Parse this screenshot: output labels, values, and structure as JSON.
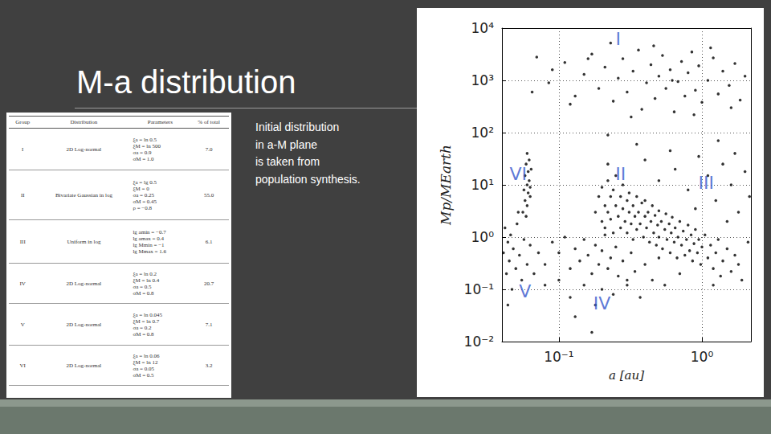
{
  "slide": {
    "title": "M-a distribution",
    "caption": [
      "Initial distribution",
      "in a-M plane",
      "is taken from",
      "population synthesis."
    ],
    "table": {
      "header": [
        "Group",
        "Distribution",
        "Parameters",
        "% of total"
      ],
      "rows": [
        [
          "I",
          "2D Log-normal",
          [
            "ξa = ln 0.5",
            "ξM = ln 500",
            "σa = 0.9",
            "σM = 1.0"
          ],
          "7.0"
        ],
        [
          "II",
          "Bivariate Gaussian in log",
          [
            "ξa = lg 0.5",
            "ξM = 0",
            "σa = 0.25",
            "σM = 0.45",
            "ρ = −0.8"
          ],
          "55.0"
        ],
        [
          "III",
          "Uniform in log",
          [
            "lg amin = −0.7",
            "lg amax = 0.4",
            "lg Mmin = −1",
            "lg Mmax = 1.6"
          ],
          "6.1"
        ],
        [
          "IV",
          "2D Log-normal",
          [
            "ξa = ln 0.2",
            "ξM = ln 0.4",
            "σa = 0.5",
            "σM = 0.8"
          ],
          "20.7"
        ],
        [
          "V",
          "2D Log-normal",
          [
            "ξa = ln 0.045",
            "ξM = ln 0.7",
            "σa = 0.2",
            "σM = 0.8"
          ],
          "7.1"
        ],
        [
          "VI",
          "2D Log-normal",
          [
            "ξa = ln 0.06",
            "ξM = ln 12",
            "σa = 0.05",
            "σM = 0.5"
          ],
          "3.2"
        ]
      ]
    }
  },
  "chart_data": {
    "type": "scatter",
    "xlabel": "a [au]",
    "ylabel": "Mp/MEarth",
    "log": true,
    "grid": true,
    "color": "#000000",
    "marker": "circle",
    "xlim": [
      0.04,
      2.2
    ],
    "ylim": [
      0.01,
      10000
    ],
    "xticks": [
      {
        "value": 0.1,
        "label": "10⁻¹"
      },
      {
        "value": 1,
        "label": "10⁰"
      }
    ],
    "yticks": [
      {
        "value": 0.01,
        "label": "10⁻²"
      },
      {
        "value": 0.1,
        "label": "10⁻¹"
      },
      {
        "value": 1,
        "label": "10⁰"
      },
      {
        "value": 10,
        "label": "10¹"
      },
      {
        "value": 100,
        "label": "10²"
      },
      {
        "value": 1000,
        "label": "10³"
      },
      {
        "value": 10000,
        "label": "10⁴"
      }
    ],
    "x": [
      0.07,
      0.085,
      0.11,
      0.13,
      0.15,
      0.17,
      0.19,
      0.21,
      0.24,
      0.26,
      0.28,
      0.3,
      0.33,
      0.36,
      0.38,
      0.41,
      0.44,
      0.47,
      0.5,
      0.53,
      0.56,
      0.6,
      0.64,
      0.68,
      0.72,
      0.76,
      0.8,
      0.85,
      0.9,
      0.95,
      1.0,
      1.1,
      1.2,
      1.3,
      1.4,
      1.55,
      1.7,
      1.85,
      2.0,
      0.09,
      0.12,
      0.16,
      0.23,
      0.32,
      0.46,
      0.62,
      0.88,
      1.15,
      1.6,
      0.065,
      0.22,
      0.35,
      0.6,
      1.3,
      0.18,
      0.19,
      0.2,
      0.2,
      0.21,
      0.21,
      0.22,
      0.22,
      0.23,
      0.23,
      0.24,
      0.24,
      0.25,
      0.25,
      0.26,
      0.27,
      0.27,
      0.28,
      0.28,
      0.29,
      0.3,
      0.3,
      0.31,
      0.31,
      0.32,
      0.33,
      0.33,
      0.34,
      0.35,
      0.35,
      0.36,
      0.37,
      0.38,
      0.39,
      0.4,
      0.4,
      0.41,
      0.42,
      0.43,
      0.44,
      0.45,
      0.46,
      0.47,
      0.48,
      0.49,
      0.5,
      0.5,
      0.52,
      0.53,
      0.55,
      0.56,
      0.57,
      0.59,
      0.6,
      0.61,
      0.62,
      0.64,
      0.65,
      0.67,
      0.68,
      0.7,
      0.72,
      0.74,
      0.76,
      0.78,
      0.8,
      0.82,
      0.84,
      0.86,
      0.88,
      0.9,
      0.93,
      0.95,
      0.98,
      1.0,
      1.05,
      1.1,
      1.15,
      1.2,
      1.25,
      1.3,
      1.4,
      1.5,
      1.6,
      1.7,
      1.8,
      0.22,
      0.3,
      0.4,
      0.5,
      0.65,
      0.8,
      0.95,
      1.1,
      1.25,
      1.4,
      1.6,
      1.8,
      2.0,
      2.1,
      1.9,
      1.5,
      1.2,
      0.7,
      0.9,
      1.7,
      2.15,
      0.55,
      1.35,
      0.08,
      0.09,
      0.1,
      0.1,
      0.11,
      0.12,
      0.12,
      0.13,
      0.14,
      0.15,
      0.15,
      0.16,
      0.17,
      0.18,
      0.18,
      0.19,
      0.2,
      0.2,
      0.21,
      0.22,
      0.23,
      0.24,
      0.25,
      0.26,
      0.28,
      0.3,
      0.32,
      0.34,
      0.37,
      0.4,
      0.45,
      0.5,
      0.13,
      0.17,
      0.041,
      0.042,
      0.043,
      0.044,
      0.045,
      0.046,
      0.047,
      0.048,
      0.05,
      0.051,
      0.053,
      0.055,
      0.057,
      0.06,
      0.063,
      0.067,
      0.072,
      0.08,
      0.044,
      0.052,
      0.056,
      0.057,
      0.058,
      0.058,
      0.059,
      0.06,
      0.06,
      0.061,
      0.061,
      0.062,
      0.062,
      0.063,
      0.064,
      0.059,
      0.06,
      0.063
    ],
    "values": [
      2800,
      900,
      2200,
      500,
      1300,
      3200,
      700,
      1800,
      400,
      1100,
      2600,
      600,
      1500,
      3800,
      280,
      900,
      2000,
      450,
      1200,
      3000,
      700,
      1600,
      250,
      950,
      2300,
      500,
      1400,
      3500,
      650,
      1900,
      380,
      1000,
      2700,
      550,
      1500,
      800,
      2100,
      420,
      1200,
      1600,
      350,
      2600,
      5200,
      200,
      4600,
      1000,
      220,
      4200,
      300,
      600,
      90,
      60,
      45,
      70,
      3,
      6,
      2,
      9,
      4,
      1.5,
      12,
      3,
      6,
      2.2,
      8,
      1.2,
      4,
      15,
      2.5,
      6,
      1.5,
      3.5,
      10,
      2,
      5,
      1.2,
      3,
      7,
      1.8,
      4,
      0.9,
      2.5,
      6,
      1.4,
      3,
      1.8,
      4.5,
      1,
      2.5,
      5,
      1.5,
      3,
      0.8,
      2,
      4,
      1.2,
      2.6,
      0.7,
      1.7,
      3.2,
      1,
      2,
      0.6,
      1.4,
      2.8,
      0.9,
      1.8,
      0.5,
      1.2,
      2.4,
      0.8,
      1.5,
      0.4,
      1,
      2,
      0.7,
      1.3,
      0.45,
      0.9,
      1.7,
      0.55,
      1.1,
      0.35,
      0.75,
      1.4,
      0.5,
      0.9,
      0.3,
      0.65,
      1.1,
      0.4,
      0.7,
      0.25,
      0.5,
      0.9,
      0.35,
      0.6,
      0.22,
      0.45,
      0.3,
      25,
      0.15,
      30,
      12,
      20,
      8,
      35,
      15,
      5,
      25,
      10,
      3,
      18,
      0.8,
      0.15,
      2,
      0.12,
      0.2,
      3.5,
      40,
      6,
      0.12,
      0.18,
      0.3,
      0.8,
      0.15,
      0.5,
      1,
      0.25,
      0.07,
      0.6,
      0.35,
      0.12,
      0.9,
      0.45,
      0.2,
      0.7,
      0.05,
      0.3,
      0.55,
      0.1,
      1.1,
      0.25,
      0.4,
      0.08,
      0.65,
      0.18,
      0.35,
      0.12,
      0.5,
      0.22,
      0.07,
      0.3,
      0.15,
      0.4,
      0.03,
      0.015,
      0.5,
      1.5,
      0.2,
      0.8,
      0.35,
      1.1,
      0.1,
      0.6,
      0.25,
      1.8,
      0.45,
      0.15,
      0.9,
      0.3,
      0.7,
      0.2,
      0.5,
      0.12,
      0.05,
      3,
      3,
      8,
      15,
      5,
      25,
      10,
      4,
      18,
      7,
      30,
      12,
      6,
      20,
      2.5,
      40,
      9
    ],
    "annotations": [
      {
        "text": "I",
        "x": 0.26,
        "y": 6300,
        "color": "#3355cc"
      },
      {
        "text": "II",
        "x": 0.27,
        "y": 16,
        "color": "#3355cc"
      },
      {
        "text": "III",
        "x": 1.07,
        "y": 11,
        "color": "#3355cc"
      },
      {
        "text": "IV",
        "x": 0.2,
        "y": 0.054,
        "color": "#3355cc"
      },
      {
        "text": "V",
        "x": 0.058,
        "y": 0.09,
        "color": "#3355cc"
      },
      {
        "text": "VI",
        "x": 0.052,
        "y": 16,
        "color": "#3355cc"
      }
    ]
  }
}
